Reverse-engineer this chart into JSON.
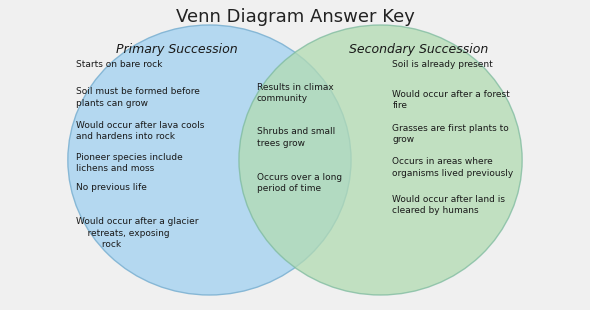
{
  "title": "Venn Diagram Answer Key",
  "title_fontsize": 13,
  "left_label": "Primary Succession",
  "right_label": "Secondary Succession",
  "left_color": "#aed6f1",
  "right_color": "#b2dbb2",
  "left_edge_color": "#7fb3d3",
  "right_edge_color": "#7dba9e",
  "left_items": [
    "Starts on bare rock",
    "Soil must be formed before\nplants can grow",
    "Would occur after lava cools\nand hardens into rock",
    "Pioneer species include\nlichens and moss",
    "No previous life",
    "Would occur after a glacier\n    retreats, exposing\n         rock"
  ],
  "center_items": [
    "Results in climax\ncommunity",
    "Shrubs and small\ntrees grow",
    "Occurs over a long\nperiod of time"
  ],
  "right_items": [
    "Soil is already present",
    "Would occur after a forest\nfire",
    "Grasses are first plants to\ngrow",
    "Occurs in areas where\norganisms lived previously",
    "Would occur after land is\ncleared by humans"
  ],
  "item_fontsize": 6.5,
  "label_fontsize": 9,
  "bg_color": "#f0f0f0"
}
